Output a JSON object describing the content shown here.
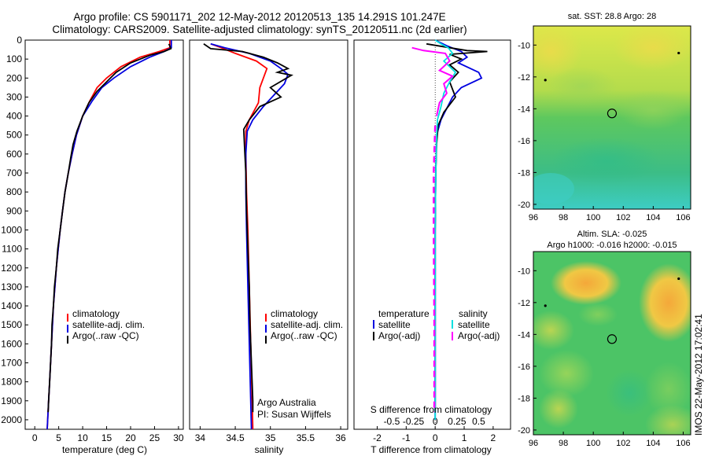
{
  "header": {
    "line1": "Argo profile: CS 5901171_202 12-May-2012 20120513_135 14.291S 101.247E",
    "line2": "Climatology: CARS2009. Satellite-adjusted climatology: synTS_20120511.nc (2d earlier)"
  },
  "colors": {
    "climatology": "#ff0000",
    "satellite": "#0000e0",
    "argo": "#000000",
    "sal_satellite": "#00e0e0",
    "sal_argo": "#ff00ff"
  },
  "depth_axis": {
    "ylim": [
      2050,
      0
    ],
    "ticks": [
      0,
      100,
      200,
      300,
      400,
      500,
      600,
      700,
      800,
      900,
      1000,
      1100,
      1200,
      1300,
      1400,
      1500,
      1600,
      1700,
      1800,
      1900,
      2000
    ]
  },
  "chart_data": [
    {
      "type": "line",
      "id": "temperature",
      "xlabel": "temperature (deg C)",
      "xlim": [
        -2,
        31
      ],
      "xticks": [
        0,
        5,
        10,
        15,
        20,
        25,
        30
      ],
      "legend": {
        "placement": "lower-left",
        "entries": [
          "climatology",
          "satellite-adj. clim.",
          "Argo(..raw -QC)"
        ]
      },
      "series": [
        {
          "name": "climatology",
          "color_key": "climatology",
          "points": [
            [
              28.2,
              0
            ],
            [
              28.2,
              40
            ],
            [
              26,
              60
            ],
            [
              22,
              90
            ],
            [
              18,
              140
            ],
            [
              15,
              200
            ],
            [
              13,
              250
            ],
            [
              11.5,
              320
            ],
            [
              10,
              400
            ],
            [
              8.7,
              500
            ],
            [
              7.8,
              600
            ],
            [
              7,
              700
            ],
            [
              6.3,
              800
            ],
            [
              5.8,
              900
            ],
            [
              5.3,
              1000
            ],
            [
              4.9,
              1100
            ],
            [
              4.5,
              1200
            ],
            [
              4.2,
              1300
            ],
            [
              3.9,
              1400
            ],
            [
              3.7,
              1500
            ],
            [
              3.5,
              1600
            ],
            [
              3.3,
              1700
            ],
            [
              3.1,
              1800
            ],
            [
              2.9,
              1900
            ],
            [
              2.7,
              2000
            ],
            [
              2.6,
              2050
            ]
          ]
        },
        {
          "name": "satellite-adj. clim.",
          "color_key": "satellite",
          "points": [
            [
              28.5,
              0
            ],
            [
              28.5,
              40
            ],
            [
              27,
              60
            ],
            [
              24,
              90
            ],
            [
              20,
              140
            ],
            [
              16.5,
              200
            ],
            [
              14,
              250
            ],
            [
              12,
              320
            ],
            [
              10,
              400
            ],
            [
              8.7,
              500
            ],
            [
              7.8,
              600
            ],
            [
              7,
              700
            ],
            [
              6.3,
              800
            ],
            [
              5.8,
              900
            ],
            [
              5.3,
              1000
            ],
            [
              4.9,
              1100
            ],
            [
              4.5,
              1200
            ],
            [
              4.2,
              1300
            ],
            [
              3.9,
              1400
            ],
            [
              3.7,
              1500
            ],
            [
              3.5,
              1600
            ],
            [
              3.3,
              1700
            ],
            [
              3.1,
              1800
            ],
            [
              2.9,
              1900
            ],
            [
              2.7,
              2000
            ],
            [
              2.6,
              2050
            ]
          ]
        },
        {
          "name": "Argo(..raw -QC)",
          "color_key": "argo",
          "points": [
            [
              28,
              20
            ],
            [
              28.4,
              45
            ],
            [
              27,
              60
            ],
            [
              24,
              80
            ],
            [
              20,
              120
            ],
            [
              17,
              170
            ],
            [
              15,
              220
            ],
            [
              13,
              270
            ],
            [
              11.3,
              330
            ],
            [
              10,
              400
            ],
            [
              8.8,
              480
            ],
            [
              8,
              550
            ],
            [
              7.5,
              620
            ],
            [
              7,
              700
            ],
            [
              6.3,
              800
            ],
            [
              5.8,
              900
            ],
            [
              5.3,
              1000
            ],
            [
              4.8,
              1100
            ],
            [
              4.5,
              1200
            ],
            [
              4.1,
              1300
            ],
            [
              3.9,
              1400
            ],
            [
              3.6,
              1500
            ],
            [
              3.5,
              1600
            ],
            [
              3.3,
              1700
            ],
            [
              3.1,
              1800
            ],
            [
              2.9,
              1900
            ],
            [
              2.8,
              1960
            ]
          ]
        }
      ]
    },
    {
      "type": "line",
      "id": "salinity",
      "xlabel": "salinity",
      "xlim": [
        33.85,
        36.1
      ],
      "xticks": [
        34,
        34.5,
        35,
        35.5,
        36
      ],
      "annotations": [
        "Argo Australia",
        "PI: Susan Wijffels"
      ],
      "legend": {
        "placement": "lower-right",
        "entries": [
          "climatology",
          "satellite-adj. clim.",
          "Argo(..raw -QC)"
        ]
      },
      "series": [
        {
          "name": "climatology",
          "color_key": "climatology",
          "points": [
            [
              34.15,
              20
            ],
            [
              34.3,
              40
            ],
            [
              34.5,
              70
            ],
            [
              34.8,
              110
            ],
            [
              34.95,
              150
            ],
            [
              34.9,
              200
            ],
            [
              34.85,
              250
            ],
            [
              34.83,
              330
            ],
            [
              34.7,
              420
            ],
            [
              34.65,
              480
            ],
            [
              34.65,
              600
            ],
            [
              34.66,
              800
            ],
            [
              34.68,
              1000
            ],
            [
              34.7,
              1300
            ],
            [
              34.72,
              1600
            ],
            [
              34.74,
              1900
            ],
            [
              34.75,
              2050
            ]
          ]
        },
        {
          "name": "satellite-adj. clim.",
          "color_key": "satellite",
          "points": [
            [
              34.15,
              20
            ],
            [
              34.35,
              40
            ],
            [
              34.7,
              70
            ],
            [
              35,
              110
            ],
            [
              35.15,
              150
            ],
            [
              35.25,
              180
            ],
            [
              35.2,
              230
            ],
            [
              35.05,
              290
            ],
            [
              34.9,
              350
            ],
            [
              34.75,
              420
            ],
            [
              34.67,
              480
            ],
            [
              34.65,
              600
            ],
            [
              34.65,
              800
            ],
            [
              34.66,
              1000
            ],
            [
              34.68,
              1300
            ],
            [
              34.7,
              1600
            ],
            [
              34.72,
              1900
            ],
            [
              34.73,
              2050
            ]
          ]
        },
        {
          "name": "Argo(..raw -QC)",
          "color_key": "argo",
          "points": [
            [
              34.05,
              20
            ],
            [
              34.15,
              45
            ],
            [
              34.6,
              60
            ],
            [
              34.9,
              90
            ],
            [
              35.1,
              120
            ],
            [
              35.25,
              150
            ],
            [
              35.1,
              170
            ],
            [
              35.3,
              185
            ],
            [
              35,
              250
            ],
            [
              35.15,
              300
            ],
            [
              34.85,
              350
            ],
            [
              34.7,
              420
            ],
            [
              34.62,
              470
            ],
            [
              34.63,
              550
            ],
            [
              34.65,
              700
            ],
            [
              34.66,
              900
            ],
            [
              34.68,
              1100
            ],
            [
              34.7,
              1300
            ],
            [
              34.71,
              1500
            ],
            [
              34.73,
              1700
            ],
            [
              34.75,
              1900
            ],
            [
              34.75,
              1960
            ]
          ]
        }
      ]
    },
    {
      "type": "line",
      "id": "difference",
      "xlabel_bottom": "T difference from climatology",
      "xlabel_top": "S difference from climatology",
      "xlim": [
        -2.8,
        2.6
      ],
      "xticks_T": [
        -2,
        -1,
        0,
        1,
        2
      ],
      "xticks_S": [
        -0.5,
        -0.25,
        0,
        0.25,
        0.5
      ],
      "legend": {
        "placement": "lower-center",
        "temperature_title": "temperature",
        "temperature_entries": [
          "satellite",
          "Argo(-adj)"
        ],
        "salinity_title": "salinity",
        "salinity_entries": [
          "satellite",
          "Argo(-adj)"
        ]
      },
      "series": [
        {
          "name": "temperature satellite",
          "color_key": "satellite",
          "points": [
            [
              0,
              0
            ],
            [
              0.4,
              30
            ],
            [
              0.9,
              60
            ],
            [
              1.1,
              90
            ],
            [
              0.8,
              120
            ],
            [
              1.5,
              170
            ],
            [
              1.6,
              200
            ],
            [
              0.9,
              250
            ],
            [
              0.6,
              300
            ],
            [
              0.4,
              360
            ],
            [
              0.2,
              420
            ],
            [
              0.05,
              500
            ],
            [
              0.02,
              700
            ],
            [
              0,
              1000
            ],
            [
              0,
              1500
            ],
            [
              0,
              2000
            ]
          ]
        },
        {
          "name": "temperature Argo(-adj)",
          "color_key": "argo",
          "points": [
            [
              -0.3,
              20
            ],
            [
              0.5,
              40
            ],
            [
              1.1,
              55
            ],
            [
              1.8,
              60
            ],
            [
              0.5,
              75
            ],
            [
              0.9,
              100
            ],
            [
              0.5,
              130
            ],
            [
              0.8,
              170
            ],
            [
              0.5,
              220
            ],
            [
              0.7,
              300
            ],
            [
              0.3,
              380
            ],
            [
              0.1,
              450
            ],
            [
              0.05,
              550
            ],
            [
              0.02,
              700
            ],
            [
              0,
              1000
            ],
            [
              0,
              1500
            ],
            [
              0,
              1960
            ]
          ]
        },
        {
          "name": "salinity satellite",
          "color_key": "sal_satellite",
          "points": [
            [
              0,
              0
            ],
            [
              0.2,
              20
            ],
            [
              0.45,
              40
            ],
            [
              0.6,
              70
            ],
            [
              0.3,
              110
            ],
            [
              0.7,
              170
            ],
            [
              0.5,
              220
            ],
            [
              0.3,
              280
            ],
            [
              0.2,
              350
            ],
            [
              0.08,
              420
            ],
            [
              0.05,
              500
            ],
            [
              0.02,
              700
            ],
            [
              0,
              1000
            ],
            [
              0,
              1500
            ],
            [
              0,
              2000
            ]
          ]
        },
        {
          "name": "salinity Argo(-adj)",
          "color_key": "sal_argo",
          "points": [
            [
              -0.8,
              40
            ],
            [
              -0.4,
              55
            ],
            [
              0.35,
              70
            ],
            [
              0.5,
              110
            ],
            [
              0.15,
              160
            ],
            [
              0.6,
              190
            ],
            [
              0.3,
              230
            ],
            [
              0.4,
              280
            ],
            [
              0.15,
              330
            ],
            [
              0.05,
              400
            ],
            [
              0,
              450
            ],
            [
              -0.05,
              700
            ],
            [
              -0.05,
              1000
            ],
            [
              -0.03,
              1500
            ],
            [
              -0.03,
              1960
            ]
          ],
          "dashed_below": 420
        }
      ]
    },
    {
      "type": "heatmap",
      "id": "sst",
      "title": "sat. SST: 28.8  Argo: 28",
      "xlim": [
        96,
        106.5
      ],
      "ylim": [
        -20.3,
        -8.8
      ],
      "xticks": [
        96,
        98,
        100,
        102,
        104,
        106
      ],
      "yticks": [
        -10,
        -12,
        -14,
        -16,
        -18,
        -20
      ],
      "marker": {
        "x": 101.247,
        "y": -14.291
      },
      "dots": [
        {
          "x": 105.7,
          "y": -10.5
        },
        {
          "x": 96.8,
          "y": -12.2
        }
      ]
    },
    {
      "type": "heatmap",
      "id": "sla",
      "title_line1": "Altim. SLA: -0.025",
      "title_line2": "Argo h1000: -0.016 h2000: -0.015",
      "xlim": [
        96,
        106.5
      ],
      "ylim": [
        -20.3,
        -8.8
      ],
      "xticks": [
        96,
        98,
        100,
        102,
        104,
        106
      ],
      "yticks": [
        -10,
        -12,
        -14,
        -16,
        -18,
        -20
      ],
      "marker": {
        "x": 101.247,
        "y": -14.291
      },
      "dots": [
        {
          "x": 105.7,
          "y": -10.5
        },
        {
          "x": 96.8,
          "y": -12.2
        }
      ]
    }
  ],
  "stamp": "IMOS 22-May-2012 17:02:41"
}
